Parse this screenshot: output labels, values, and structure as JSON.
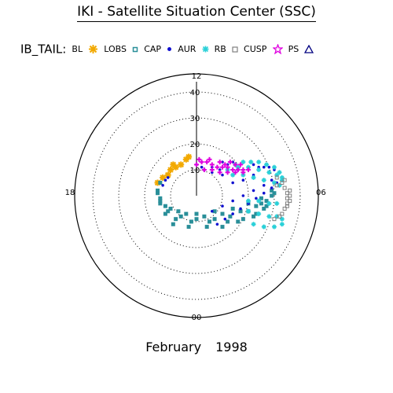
{
  "title": "IKI - Satellite Situation Center (SSC)",
  "legend": {
    "label": "IB_TAIL:",
    "items": [
      {
        "name": "BL",
        "color": "#f2a900",
        "symbol": "star"
      },
      {
        "name": "LOBS",
        "color": "#2a8f99",
        "symbol": "square"
      },
      {
        "name": "CAP",
        "color": "#1010d0",
        "symbol": "dot"
      },
      {
        "name": "AUR",
        "color": "#2ad0d8",
        "symbol": "asterisk"
      },
      {
        "name": "RB",
        "color": "#808080",
        "symbol": "square"
      },
      {
        "name": "CUSP",
        "color": "#e000e0",
        "symbol": "star"
      },
      {
        "name": "PS",
        "color": "#000080",
        "symbol": "triangle"
      }
    ]
  },
  "footer": {
    "month": "February",
    "year": "1998"
  },
  "chart_data": {
    "type": "scatter",
    "coordinate_system": "polar (magnetic local time vs radial distance)",
    "title": "IKI - Satellite Situation Center (SSC)",
    "subtitle": "February    1998",
    "r_ticks": [
      10,
      20,
      30,
      40
    ],
    "r_max": 47,
    "time_labels": {
      "top": "12",
      "right": "06",
      "bottom": "00",
      "left": "18"
    },
    "grid": "dotted circles",
    "series": [
      {
        "name": "BL",
        "color": "#f2a900",
        "x": [
          -4,
          -6,
          -8,
          -10,
          -11,
          -13,
          -15,
          -9,
          -3
        ],
        "y": [
          14,
          12,
          11,
          10,
          8,
          7,
          5,
          12,
          15
        ]
      },
      {
        "name": "LOBS",
        "color": "#2a8f99",
        "x": [
          -14,
          -15,
          -14,
          -11,
          -6,
          0,
          7,
          13,
          20,
          25,
          29,
          -15,
          -14,
          -10,
          -4,
          3,
          10,
          17,
          23,
          27,
          30,
          -14,
          -12,
          -7,
          0,
          7,
          14,
          20,
          25,
          29,
          -12,
          -8,
          -2,
          5,
          12,
          18,
          23,
          27,
          -9,
          -3,
          4,
          10,
          16,
          22,
          26
        ],
        "y": [
          5,
          1,
          -3,
          -6,
          -8,
          -9,
          -9,
          -8,
          -6,
          -3,
          0,
          2,
          -2,
          -5,
          -7,
          -8,
          -7,
          -6,
          -4,
          -2,
          1,
          -1,
          -4,
          -6,
          -7,
          -6,
          -5,
          -3,
          -1,
          2,
          -7,
          -9,
          -10,
          -10,
          -10,
          -9,
          -7,
          -4,
          -11,
          -12,
          -12,
          -12,
          -10,
          -8,
          -5
        ]
      },
      {
        "name": "CAP",
        "color": "#1010d0",
        "x": [
          8,
          11,
          14,
          17,
          20,
          23,
          26,
          29,
          31,
          6,
          10,
          14,
          18,
          22,
          26,
          29,
          12,
          16,
          20,
          24,
          28,
          10,
          14,
          18,
          22,
          26,
          30,
          2,
          6,
          10,
          14,
          18,
          22,
          0,
          3,
          6,
          9,
          12,
          -12,
          -13,
          -11
        ],
        "y": [
          -11,
          -9,
          -7,
          -5,
          -3,
          -1,
          1,
          3,
          5,
          -6,
          -4,
          -2,
          0,
          2,
          4,
          6,
          10,
          10,
          11,
          11,
          11,
          13,
          13,
          13,
          12,
          11,
          10,
          11,
          11,
          8,
          5,
          6,
          8,
          12,
          10,
          9,
          10,
          12,
          6,
          4,
          7
        ]
      },
      {
        "name": "AUR",
        "color": "#2ad0d8",
        "x": [
          15,
          18,
          21,
          24,
          27,
          30,
          32,
          33,
          12,
          16,
          20,
          24,
          28,
          31,
          33,
          14,
          18,
          22,
          26,
          30,
          32,
          20,
          24,
          28,
          31,
          20,
          24,
          28,
          31,
          33,
          22,
          26,
          30,
          33
        ],
        "y": [
          12,
          13,
          13,
          13,
          12,
          11,
          9,
          7,
          10,
          11,
          11,
          10,
          9,
          8,
          6,
          8,
          8,
          7,
          6,
          5,
          4,
          -2,
          -2,
          -3,
          -3,
          -6,
          -7,
          -8,
          -8,
          -9,
          -11,
          -12,
          -12,
          -11
        ]
      },
      {
        "name": "RB",
        "color": "#808080",
        "x": [
          34,
          34,
          35,
          35,
          35,
          34,
          33,
          32,
          30,
          36,
          36,
          36,
          35,
          31,
          31,
          33
        ],
        "y": [
          6,
          3,
          1,
          -1,
          -3,
          -5,
          -7,
          -8,
          -9,
          2,
          0,
          -2,
          -4,
          4,
          7,
          5
        ]
      },
      {
        "name": "CUSP",
        "color": "#e000e0",
        "x": [
          0,
          2,
          4,
          6,
          8,
          10,
          12,
          14,
          16,
          18,
          20,
          3,
          6,
          9,
          12,
          15,
          18,
          1,
          5,
          9,
          13,
          17,
          11,
          15
        ],
        "y": [
          12,
          13,
          13,
          12,
          11,
          11,
          11,
          10,
          10,
          10,
          10,
          10,
          10,
          9,
          9,
          9,
          9,
          14,
          14,
          13,
          13,
          12,
          12,
          12
        ]
      },
      {
        "name": "PS",
        "color": "#000080",
        "x": [],
        "y": []
      }
    ]
  }
}
